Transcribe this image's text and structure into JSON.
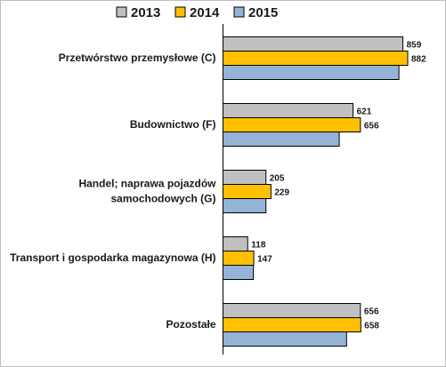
{
  "chart_data": {
    "type": "bar",
    "orientation": "horizontal",
    "legend_position": "top",
    "grid": false,
    "categories": [
      [
        "Przetwórstwo przemysłowe (C)"
      ],
      [
        "Budownictwo (F)"
      ],
      [
        "Handel; naprawa pojazdów",
        "samochodowych (G)"
      ],
      [
        "Transport i gospodarka magazynowa (H)"
      ],
      [
        "Pozostałe"
      ]
    ],
    "series": [
      {
        "name": "2013",
        "color": "#c0c0c0",
        "values": [
          859,
          621,
          205,
          118,
          656
        ],
        "labels": [
          "859",
          "621",
          "205",
          "118",
          "656"
        ]
      },
      {
        "name": "2014",
        "color": "#ffc000",
        "values": [
          882,
          656,
          229,
          147,
          658
        ],
        "labels": [
          "882",
          "656",
          "229",
          "147",
          "658"
        ]
      },
      {
        "name": "2015",
        "color": "#95b3d7",
        "values": [
          840,
          555,
          205,
          145,
          590
        ],
        "labels": [
          "",
          "",
          "",
          "",
          ""
        ]
      }
    ],
    "xlim": [
      0,
      882
    ]
  }
}
